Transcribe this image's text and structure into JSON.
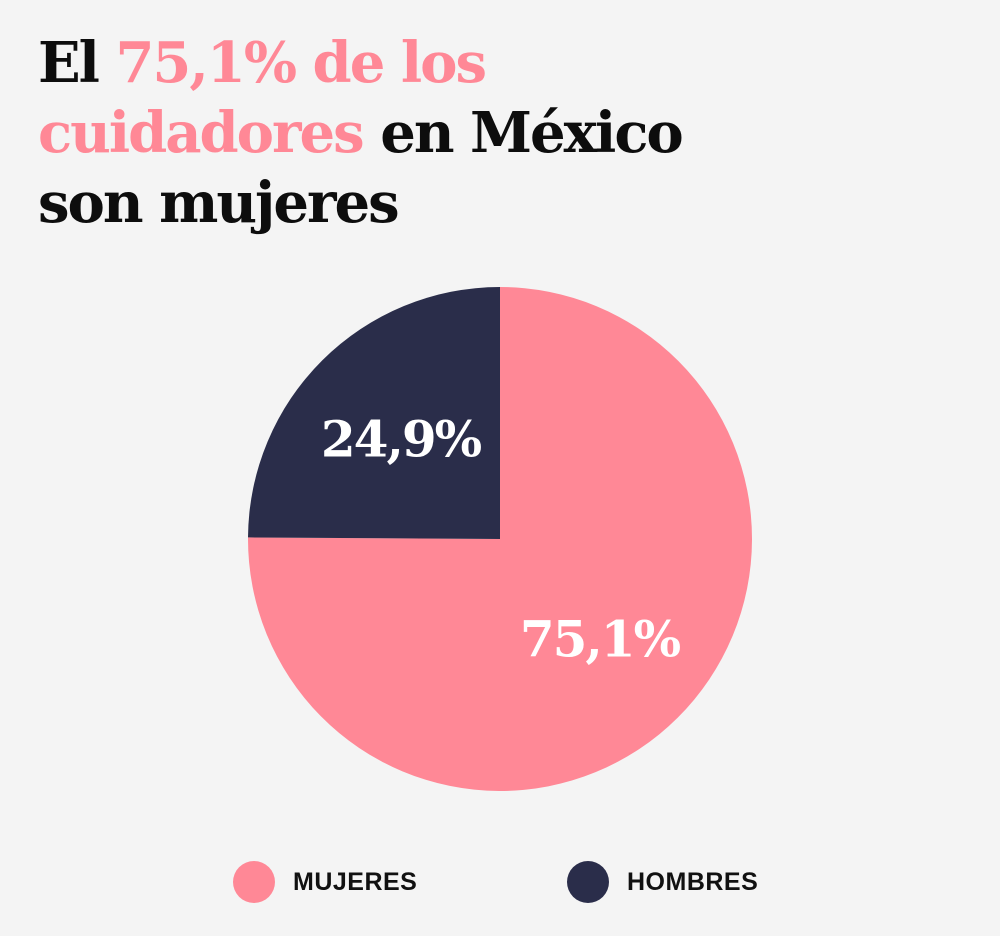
{
  "title": {
    "line1_a": "El ",
    "line1_b": "75,1% de los",
    "line2_a": "cuidadores",
    "line2_b": " en México",
    "line3": "son mujeres",
    "highlight_color": "#ff8896"
  },
  "chart_data": {
    "type": "pie",
    "title": "El 75,1% de los cuidadores en México son mujeres",
    "slices": [
      {
        "name": "MUJERES",
        "value": 75.1,
        "label": "75,1%",
        "color": "#ff8896"
      },
      {
        "name": "HOMBRES",
        "value": 24.9,
        "label": "24,9%",
        "color": "#2a2d4a"
      }
    ],
    "legend_position": "bottom"
  },
  "legend": {
    "items": [
      {
        "label": "MUJERES",
        "color": "#ff8896"
      },
      {
        "label": "HOMBRES",
        "color": "#2a2d4a"
      }
    ]
  }
}
